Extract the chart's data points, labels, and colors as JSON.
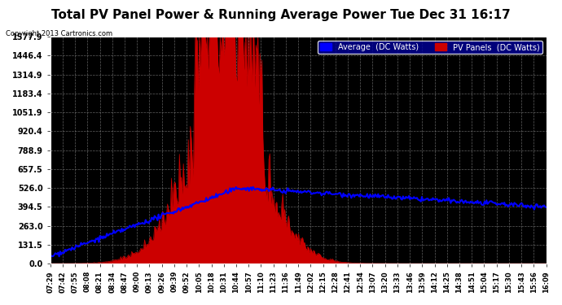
{
  "title": "Total PV Panel Power & Running Average Power Tue Dec 31 16:17",
  "copyright": "Copyright 2013 Cartronics.com",
  "legend_avg": "Average  (DC Watts)",
  "legend_pv": "PV Panels  (DC Watts)",
  "bg_color": "#000000",
  "plot_bg_color": "#000000",
  "y_max": 1577.9,
  "y_min": 0.0,
  "y_ticks": [
    0.0,
    131.5,
    263.0,
    394.5,
    526.0,
    657.5,
    788.9,
    920.4,
    1051.9,
    1183.4,
    1314.9,
    1446.4,
    1577.9
  ],
  "x_tick_labels": [
    "07:29",
    "07:42",
    "07:55",
    "08:08",
    "08:21",
    "08:34",
    "08:47",
    "09:00",
    "09:13",
    "09:26",
    "09:39",
    "09:52",
    "10:05",
    "10:18",
    "10:31",
    "10:44",
    "10:57",
    "11:10",
    "11:23",
    "11:36",
    "11:49",
    "12:02",
    "12:15",
    "12:28",
    "12:41",
    "12:54",
    "13:07",
    "13:20",
    "13:33",
    "13:46",
    "13:59",
    "14:12",
    "14:25",
    "14:38",
    "14:51",
    "15:04",
    "15:17",
    "15:30",
    "15:43",
    "15:56",
    "16:09"
  ],
  "pv_color": "#cc0000",
  "avg_color": "#0000ff",
  "grid_color": "#555555",
  "title_color": "#000000",
  "title_bg": "#ffffff",
  "text_color": "#000000"
}
